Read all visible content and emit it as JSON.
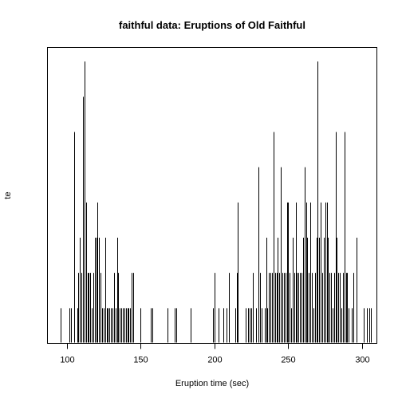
{
  "chart_data": {
    "type": "bar",
    "title": "faithful data: Eruptions of Old Faithful",
    "xlabel": "Eruption time (sec)",
    "ylabel": "te",
    "xlim": [
      87,
      310
    ],
    "ylim": [
      0,
      8.4
    ],
    "xticks": [
      100,
      150,
      200,
      250,
      300
    ],
    "bars": [
      {
        "x": 96,
        "count": 1
      },
      {
        "x": 102,
        "count": 1
      },
      {
        "x": 103,
        "count": 1
      },
      {
        "x": 105,
        "count": 6
      },
      {
        "x": 107,
        "count": 1
      },
      {
        "x": 108,
        "count": 2
      },
      {
        "x": 109,
        "count": 3
      },
      {
        "x": 110,
        "count": 2
      },
      {
        "x": 111,
        "count": 7
      },
      {
        "x": 112,
        "count": 8
      },
      {
        "x": 113,
        "count": 4
      },
      {
        "x": 114,
        "count": 2
      },
      {
        "x": 115,
        "count": 2
      },
      {
        "x": 116,
        "count": 2
      },
      {
        "x": 117,
        "count": 1
      },
      {
        "x": 118,
        "count": 2
      },
      {
        "x": 119,
        "count": 3
      },
      {
        "x": 120,
        "count": 3
      },
      {
        "x": 121,
        "count": 4
      },
      {
        "x": 122,
        "count": 3
      },
      {
        "x": 123,
        "count": 2
      },
      {
        "x": 124,
        "count": 1
      },
      {
        "x": 125,
        "count": 1
      },
      {
        "x": 126,
        "count": 3
      },
      {
        "x": 127,
        "count": 1
      },
      {
        "x": 128,
        "count": 1
      },
      {
        "x": 129,
        "count": 1
      },
      {
        "x": 130,
        "count": 1
      },
      {
        "x": 131,
        "count": 1
      },
      {
        "x": 132,
        "count": 2
      },
      {
        "x": 133,
        "count": 1
      },
      {
        "x": 134,
        "count": 3
      },
      {
        "x": 135,
        "count": 2
      },
      {
        "x": 136,
        "count": 1
      },
      {
        "x": 137,
        "count": 1
      },
      {
        "x": 138,
        "count": 1
      },
      {
        "x": 139,
        "count": 1
      },
      {
        "x": 140,
        "count": 1
      },
      {
        "x": 141,
        "count": 1
      },
      {
        "x": 142,
        "count": 1
      },
      {
        "x": 143,
        "count": 1
      },
      {
        "x": 144,
        "count": 2
      },
      {
        "x": 145,
        "count": 2
      },
      {
        "x": 150,
        "count": 1
      },
      {
        "x": 157,
        "count": 1
      },
      {
        "x": 158,
        "count": 1
      },
      {
        "x": 168,
        "count": 1
      },
      {
        "x": 173,
        "count": 1
      },
      {
        "x": 174,
        "count": 1
      },
      {
        "x": 184,
        "count": 1
      },
      {
        "x": 199,
        "count": 1
      },
      {
        "x": 200,
        "count": 2
      },
      {
        "x": 203,
        "count": 1
      },
      {
        "x": 206,
        "count": 1
      },
      {
        "x": 208,
        "count": 1
      },
      {
        "x": 210,
        "count": 2
      },
      {
        "x": 214,
        "count": 1
      },
      {
        "x": 215,
        "count": 2
      },
      {
        "x": 216,
        "count": 4
      },
      {
        "x": 221,
        "count": 1
      },
      {
        "x": 223,
        "count": 1
      },
      {
        "x": 224,
        "count": 1
      },
      {
        "x": 225,
        "count": 1
      },
      {
        "x": 226,
        "count": 2
      },
      {
        "x": 228,
        "count": 1
      },
      {
        "x": 230,
        "count": 5
      },
      {
        "x": 231,
        "count": 2
      },
      {
        "x": 232,
        "count": 1
      },
      {
        "x": 234,
        "count": 1
      },
      {
        "x": 235,
        "count": 3
      },
      {
        "x": 236,
        "count": 1
      },
      {
        "x": 237,
        "count": 2
      },
      {
        "x": 238,
        "count": 2
      },
      {
        "x": 239,
        "count": 2
      },
      {
        "x": 240,
        "count": 6
      },
      {
        "x": 241,
        "count": 2
      },
      {
        "x": 242,
        "count": 2
      },
      {
        "x": 243,
        "count": 3
      },
      {
        "x": 244,
        "count": 2
      },
      {
        "x": 245,
        "count": 5
      },
      {
        "x": 246,
        "count": 2
      },
      {
        "x": 247,
        "count": 2
      },
      {
        "x": 248,
        "count": 2
      },
      {
        "x": 249,
        "count": 4
      },
      {
        "x": 250,
        "count": 4
      },
      {
        "x": 251,
        "count": 2
      },
      {
        "x": 252,
        "count": 1
      },
      {
        "x": 253,
        "count": 3
      },
      {
        "x": 254,
        "count": 2
      },
      {
        "x": 255,
        "count": 4
      },
      {
        "x": 256,
        "count": 2
      },
      {
        "x": 257,
        "count": 2
      },
      {
        "x": 258,
        "count": 2
      },
      {
        "x": 259,
        "count": 2
      },
      {
        "x": 260,
        "count": 3
      },
      {
        "x": 261,
        "count": 5
      },
      {
        "x": 262,
        "count": 4
      },
      {
        "x": 263,
        "count": 3
      },
      {
        "x": 264,
        "count": 2
      },
      {
        "x": 265,
        "count": 4
      },
      {
        "x": 266,
        "count": 2
      },
      {
        "x": 267,
        "count": 1
      },
      {
        "x": 268,
        "count": 2
      },
      {
        "x": 269,
        "count": 3
      },
      {
        "x": 270,
        "count": 8
      },
      {
        "x": 271,
        "count": 3
      },
      {
        "x": 272,
        "count": 4
      },
      {
        "x": 273,
        "count": 2
      },
      {
        "x": 274,
        "count": 3
      },
      {
        "x": 275,
        "count": 4
      },
      {
        "x": 276,
        "count": 4
      },
      {
        "x": 277,
        "count": 3
      },
      {
        "x": 278,
        "count": 2
      },
      {
        "x": 279,
        "count": 2
      },
      {
        "x": 280,
        "count": 1
      },
      {
        "x": 281,
        "count": 2
      },
      {
        "x": 282,
        "count": 6
      },
      {
        "x": 283,
        "count": 3
      },
      {
        "x": 284,
        "count": 2
      },
      {
        "x": 285,
        "count": 2
      },
      {
        "x": 286,
        "count": 1
      },
      {
        "x": 287,
        "count": 2
      },
      {
        "x": 288,
        "count": 6
      },
      {
        "x": 289,
        "count": 2
      },
      {
        "x": 290,
        "count": 2
      },
      {
        "x": 291,
        "count": 1
      },
      {
        "x": 293,
        "count": 1
      },
      {
        "x": 294,
        "count": 2
      },
      {
        "x": 296,
        "count": 3
      },
      {
        "x": 301,
        "count": 1
      },
      {
        "x": 303,
        "count": 1
      },
      {
        "x": 305,
        "count": 1
      },
      {
        "x": 306,
        "count": 1
      }
    ],
    "grid": false,
    "legend": "none",
    "bar_color": "#000000"
  }
}
